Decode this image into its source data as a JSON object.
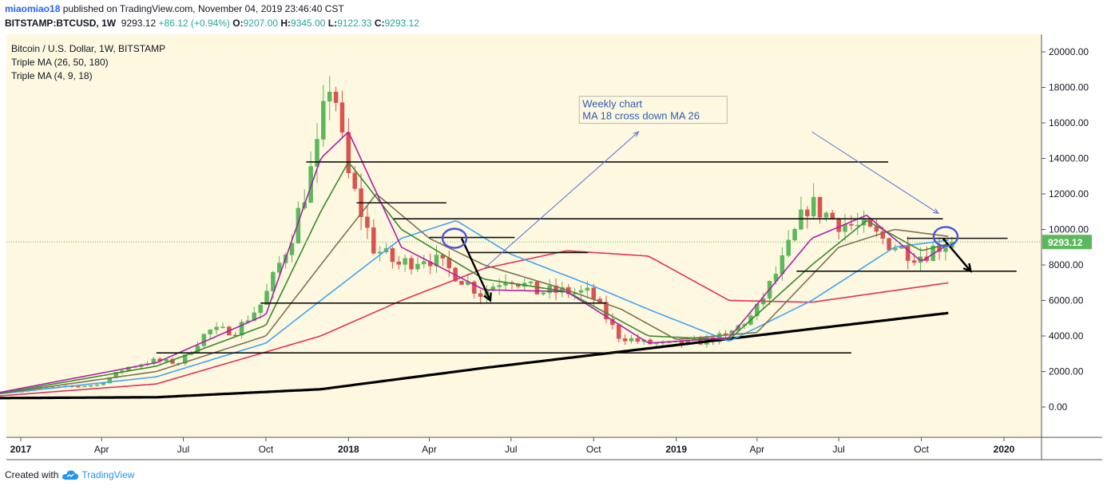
{
  "header": {
    "author": "miaomiao18",
    "published": "published on TradingView.com, November 04, 2019 23:46:40 CST",
    "symbol": "BITSTAMP:BTCUSD, 1W",
    "last": "9293.12",
    "change": "+86.12 (+0.94%)",
    "open_label": "O:",
    "open": "9207.00",
    "high_label": "H:",
    "high": "9345.00",
    "low_label": "L:",
    "low": "9122.33",
    "close_label": "C:",
    "close": "9293.12"
  },
  "legend": {
    "title": "Bitcoin / U.S. Dollar, 1W, BITSTAMP",
    "ma1": "Triple MA (26, 50, 180)",
    "ma2": "Triple MA (4, 9, 18)"
  },
  "footer": {
    "created_with": "Created with",
    "brand": "TradingView"
  },
  "colors": {
    "bg": "#fdf8df",
    "up": "#5cb85c",
    "down": "#d9534f",
    "ma4": "#ae1fa8",
    "ma9": "#3b8a2e",
    "ma18": "#7f7350",
    "ma26": "#42a5f5",
    "ma50": "#e0315a",
    "ma180": "#000000",
    "price_label": "#5cb85c"
  },
  "chart_data": {
    "type": "candlestick",
    "title": "Bitcoin / U.S. Dollar, 1W, BITSTAMP",
    "interval": "1W",
    "y_axis": {
      "min": 0,
      "max": 20000,
      "ticks": [
        "20000.00",
        "18000.00",
        "16000.00",
        "14000.00",
        "12000.00",
        "10000.00",
        "8000.00",
        "6000.00",
        "4000.00",
        "2000.00",
        "0.00"
      ]
    },
    "x_axis": {
      "ticks": [
        {
          "label": "2017",
          "date": "2017-01",
          "bold": true
        },
        {
          "label": "Apr",
          "date": "2017-04"
        },
        {
          "label": "Jul",
          "date": "2017-07"
        },
        {
          "label": "Oct",
          "date": "2017-10"
        },
        {
          "label": "2018",
          "date": "2018-01",
          "bold": true
        },
        {
          "label": "Apr",
          "date": "2018-04"
        },
        {
          "label": "Jul",
          "date": "2018-07"
        },
        {
          "label": "Oct",
          "date": "2018-10"
        },
        {
          "label": "2019",
          "date": "2019-01",
          "bold": true
        },
        {
          "label": "Apr",
          "date": "2019-04"
        },
        {
          "label": "Jul",
          "date": "2019-07"
        },
        {
          "label": "Oct",
          "date": "2019-10"
        },
        {
          "label": "2020",
          "date": "2020-01",
          "bold": true
        }
      ]
    },
    "last_price": "9293.12",
    "annotation": {
      "lines": [
        "Weekly chart",
        "MA 18 cross down MA 26"
      ]
    },
    "price_path": [
      [
        "2016-12",
        780
      ],
      [
        "2017-01",
        900
      ],
      [
        "2017-02",
        1050
      ],
      [
        "2017-03",
        1150
      ],
      [
        "2017-04",
        1250
      ],
      [
        "2017-05",
        2200
      ],
      [
        "2017-06",
        2600
      ],
      [
        "2017-07",
        2500
      ],
      [
        "2017-08",
        4300
      ],
      [
        "2017-09",
        4300
      ],
      [
        "2017-10",
        5900
      ],
      [
        "2017-11",
        9500
      ],
      [
        "2017-12",
        14500
      ],
      [
        "2017-12-17",
        19000
      ],
      [
        "2018-01",
        13500
      ],
      [
        "2018-02",
        9000
      ],
      [
        "2018-03",
        8000
      ],
      [
        "2018-04",
        8500
      ],
      [
        "2018-05",
        7600
      ],
      [
        "2018-06",
        6400
      ],
      [
        "2018-07",
        7400
      ],
      [
        "2018-08",
        6500
      ],
      [
        "2018-09",
        6500
      ],
      [
        "2018-10",
        6400
      ],
      [
        "2018-11",
        4000
      ],
      [
        "2018-12",
        3600
      ],
      [
        "2019-01",
        3500
      ],
      [
        "2019-02",
        3700
      ],
      [
        "2019-03",
        4000
      ],
      [
        "2019-04",
        5200
      ],
      [
        "2019-05",
        8000
      ],
      [
        "2019-06",
        11500
      ],
      [
        "2019-07",
        10500
      ],
      [
        "2019-08",
        10000
      ],
      [
        "2019-09",
        9200
      ],
      [
        "2019-10",
        8500
      ],
      [
        "2019-10-28",
        9200
      ],
      [
        "2019-11-04",
        9293
      ]
    ],
    "series": [
      {
        "name": "MA 180",
        "path": [
          [
            "2016-12",
            500
          ],
          [
            "2017-06",
            550
          ],
          [
            "2017-12",
            1000
          ],
          [
            "2018-06",
            2200
          ],
          [
            "2018-12",
            3300
          ],
          [
            "2019-06",
            4400
          ],
          [
            "2019-11",
            5300
          ]
        ]
      },
      {
        "name": "MA 50",
        "path": [
          [
            "2016-12",
            600
          ],
          [
            "2017-06",
            1300
          ],
          [
            "2017-12",
            4000
          ],
          [
            "2018-03",
            6000
          ],
          [
            "2018-06",
            7800
          ],
          [
            "2018-09",
            8800
          ],
          [
            "2018-12",
            8500
          ],
          [
            "2019-03",
            6000
          ],
          [
            "2019-06",
            5900
          ],
          [
            "2019-11",
            7000
          ]
        ]
      },
      {
        "name": "MA 26",
        "path": [
          [
            "2016-12",
            700
          ],
          [
            "2017-06",
            1700
          ],
          [
            "2017-10",
            3600
          ],
          [
            "2017-12",
            6000
          ],
          [
            "2018-03",
            9500
          ],
          [
            "2018-05",
            10500
          ],
          [
            "2018-07",
            8600
          ],
          [
            "2018-10",
            6800
          ],
          [
            "2018-12",
            5500
          ],
          [
            "2019-03",
            3700
          ],
          [
            "2019-06",
            6000
          ],
          [
            "2019-09",
            9000
          ],
          [
            "2019-11",
            9400
          ]
        ]
      },
      {
        "name": "MA 18",
        "path": [
          [
            "2016-12",
            700
          ],
          [
            "2017-06",
            2000
          ],
          [
            "2017-10",
            4000
          ],
          [
            "2017-12",
            8000
          ],
          [
            "2018-02",
            12000
          ],
          [
            "2018-04",
            9500
          ],
          [
            "2018-06",
            8000
          ],
          [
            "2018-09",
            6600
          ],
          [
            "2018-11",
            5500
          ],
          [
            "2019-01",
            3800
          ],
          [
            "2019-04",
            4200
          ],
          [
            "2019-07",
            9000
          ],
          [
            "2019-09",
            10000
          ],
          [
            "2019-11",
            9600
          ]
        ]
      },
      {
        "name": "MA 9",
        "path": [
          [
            "2016-12",
            700
          ],
          [
            "2017-06",
            2300
          ],
          [
            "2017-10",
            4600
          ],
          [
            "2017-12",
            11000
          ],
          [
            "2018-01",
            13800
          ],
          [
            "2018-03",
            10000
          ],
          [
            "2018-06",
            7200
          ],
          [
            "2018-09",
            6500
          ],
          [
            "2018-12",
            4000
          ],
          [
            "2019-03",
            3800
          ],
          [
            "2019-06",
            8000
          ],
          [
            "2019-08",
            10500
          ],
          [
            "2019-10",
            8800
          ],
          [
            "2019-11",
            9200
          ]
        ]
      },
      {
        "name": "MA 4",
        "path": [
          [
            "2016-12",
            750
          ],
          [
            "2017-06",
            2500
          ],
          [
            "2017-10",
            5200
          ],
          [
            "2017-12",
            14000
          ],
          [
            "2018-01",
            15500
          ],
          [
            "2018-03",
            9000
          ],
          [
            "2018-06",
            6600
          ],
          [
            "2018-09",
            6500
          ],
          [
            "2018-12",
            3600
          ],
          [
            "2019-03",
            3900
          ],
          [
            "2019-06",
            9500
          ],
          [
            "2019-08",
            10800
          ],
          [
            "2019-10",
            8200
          ],
          [
            "2019-11",
            9200
          ]
        ]
      }
    ],
    "horizontal_lines": [
      {
        "y": 13800,
        "from": "2017-11-15",
        "to": "2019-08-25"
      },
      {
        "y": 11500,
        "from": "2018-01-10",
        "to": "2018-04-20"
      },
      {
        "y": 10600,
        "from": "2018-02-20",
        "to": "2019-10-25"
      },
      {
        "y": 9550,
        "from": "2018-04-01",
        "to": "2018-07-05"
      },
      {
        "y": 8700,
        "from": "2018-05-15",
        "to": "2018-09-25"
      },
      {
        "y": 5850,
        "from": "2017-09-25",
        "to": "2018-10-15"
      },
      {
        "y": 3050,
        "from": "2017-06-01",
        "to": "2019-07-15"
      },
      {
        "y": 9500,
        "from": "2019-09-15",
        "to": "2020-01-05"
      },
      {
        "y": 7650,
        "from": "2019-05-15",
        "to": "2020-01-15"
      }
    ],
    "arrows": [
      {
        "from": [
          "2018-05-07",
          9500
        ],
        "to": [
          "2018-06-08",
          6000
        ]
      },
      {
        "from": [
          "2019-10-25",
          9500
        ],
        "to": [
          "2019-11-25",
          7650
        ]
      }
    ],
    "circles": [
      {
        "at": [
          "2018-04-29",
          9500
        ]
      },
      {
        "at": [
          "2019-10-28",
          9600
        ]
      }
    ],
    "trend_lines": [
      {
        "from": [
          "2018-06-01",
          7800
        ],
        "to": [
          "2018-11-20",
          15500
        ]
      },
      {
        "from": [
          "2019-06-01",
          15500
        ],
        "to": [
          "2019-10-20",
          10900
        ]
      }
    ]
  }
}
